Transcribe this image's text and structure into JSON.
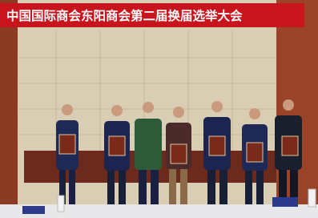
{
  "banner": {
    "title": "中国国际商会东阳商会第二届换届选举大会"
  }
}
